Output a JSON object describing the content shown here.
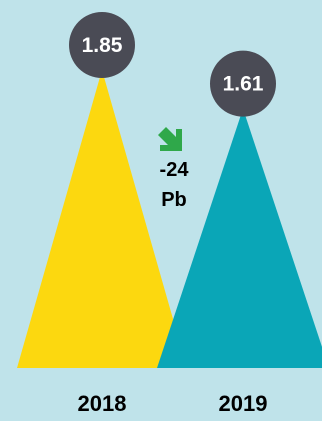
{
  "colors": {
    "background": "#bfe3ea",
    "series_2018": "#fcd80f",
    "series_2019": "#0aa6b7",
    "badge": "#4a4b55",
    "badge_text": "#ffffff",
    "label_text": "#000000",
    "arrow": "#2fa84a"
  },
  "chart_data": {
    "type": "area",
    "categories": [
      "2018",
      "2019"
    ],
    "values": [
      1.85,
      1.61
    ],
    "value_labels": [
      "1.85",
      "1.61"
    ],
    "change": {
      "value": "-24",
      "unit": "Pb",
      "direction": "down",
      "icon": "arrow-down-right-icon"
    }
  }
}
